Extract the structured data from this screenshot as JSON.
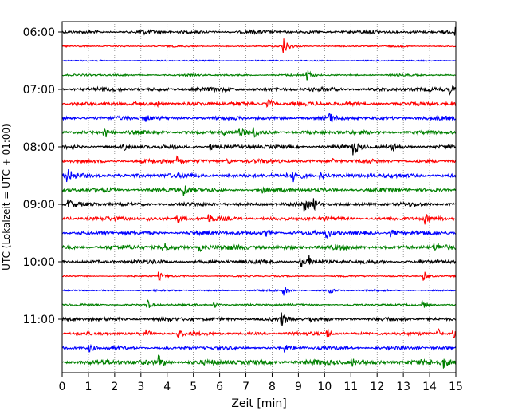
{
  "chart_data": {
    "type": "line",
    "title": "",
    "xlabel": "Zeit  [min]",
    "ylabel": "UTC (Lokalzeit = UTC + 01:00)",
    "xlim": [
      0,
      15
    ],
    "x_ticks": [
      "0",
      "1",
      "2",
      "3",
      "4",
      "5",
      "6",
      "7",
      "8",
      "9",
      "10",
      "11",
      "12",
      "13",
      "14",
      "15"
    ],
    "y_tick_labels": [
      "06:00",
      "07:00",
      "08:00",
      "09:00",
      "10:00",
      "11:00"
    ],
    "grid": "vertical-dotted",
    "trace_colors": [
      "#000000",
      "#ff0000",
      "#0000ff",
      "#008000"
    ],
    "traces": [
      {
        "time": "06:00",
        "color": "black",
        "amplitude": 0.25,
        "spikes": [
          [
            3.0,
            0.4
          ],
          [
            14.5,
            0.5
          ],
          [
            15.0,
            0.6
          ]
        ]
      },
      {
        "time": "06:15",
        "color": "red",
        "amplitude": 0.12,
        "spikes": [
          [
            8.45,
            1.4
          ]
        ]
      },
      {
        "time": "06:30",
        "color": "blue",
        "amplitude": 0.1,
        "spikes": []
      },
      {
        "time": "06:45",
        "color": "green",
        "amplitude": 0.15,
        "spikes": [
          [
            9.35,
            0.9
          ]
        ]
      },
      {
        "time": "07:00",
        "color": "black",
        "amplitude": 0.3,
        "spikes": [
          [
            14.8,
            0.7
          ]
        ]
      },
      {
        "time": "07:15",
        "color": "red",
        "amplitude": 0.3,
        "spikes": [
          [
            3.55,
            0.7
          ],
          [
            7.85,
            1.1
          ]
        ]
      },
      {
        "time": "07:30",
        "color": "blue",
        "amplitude": 0.3,
        "spikes": [
          [
            3.2,
            0.5
          ],
          [
            10.2,
            0.6
          ]
        ]
      },
      {
        "time": "07:45",
        "color": "green",
        "amplitude": 0.3,
        "spikes": [
          [
            1.6,
            1.1
          ],
          [
            6.1,
            0.7
          ],
          [
            6.75,
            0.6
          ],
          [
            7.3,
            0.7
          ]
        ]
      },
      {
        "time": "08:00",
        "color": "black",
        "amplitude": 0.3,
        "spikes": [
          [
            2.35,
            0.5
          ],
          [
            5.65,
            0.6
          ],
          [
            11.1,
            1.4
          ],
          [
            12.6,
            0.6
          ]
        ]
      },
      {
        "time": "08:15",
        "color": "red",
        "amplitude": 0.3,
        "spikes": [
          [
            4.4,
            0.8
          ],
          [
            6.3,
            0.5
          ],
          [
            10.3,
            0.5
          ]
        ]
      },
      {
        "time": "08:30",
        "color": "blue",
        "amplitude": 0.35,
        "spikes": [
          [
            0.2,
            1.0
          ],
          [
            8.85,
            0.9
          ],
          [
            9.85,
            0.6
          ]
        ]
      },
      {
        "time": "08:45",
        "color": "green",
        "amplitude": 0.3,
        "spikes": [
          [
            4.65,
            1.0
          ],
          [
            7.6,
            0.5
          ]
        ]
      },
      {
        "time": "09:00",
        "color": "black",
        "amplitude": 0.3,
        "spikes": [
          [
            0.25,
            0.9
          ],
          [
            9.25,
            1.1
          ],
          [
            9.6,
            0.7
          ]
        ]
      },
      {
        "time": "09:15",
        "color": "red",
        "amplitude": 0.3,
        "spikes": [
          [
            3.25,
            0.5
          ],
          [
            4.4,
            0.6
          ],
          [
            5.6,
            0.6
          ],
          [
            13.8,
            0.9
          ]
        ]
      },
      {
        "time": "09:30",
        "color": "blue",
        "amplitude": 0.3,
        "spikes": [
          [
            7.75,
            0.6
          ],
          [
            10.1,
            0.9
          ],
          [
            12.55,
            0.6
          ]
        ]
      },
      {
        "time": "09:45",
        "color": "green",
        "amplitude": 0.35,
        "spikes": [
          [
            3.85,
            1.0
          ],
          [
            5.25,
            0.6
          ],
          [
            14.2,
            0.6
          ]
        ]
      },
      {
        "time": "10:00",
        "color": "black",
        "amplitude": 0.3,
        "spikes": [
          [
            9.1,
            0.9
          ],
          [
            9.4,
            1.0
          ]
        ]
      },
      {
        "time": "10:15",
        "color": "red",
        "amplitude": 0.12,
        "spikes": [
          [
            3.7,
            0.7
          ],
          [
            13.8,
            0.9
          ]
        ]
      },
      {
        "time": "10:30",
        "color": "blue",
        "amplitude": 0.12,
        "spikes": [
          [
            8.45,
            0.8
          ],
          [
            10.2,
            0.5
          ]
        ]
      },
      {
        "time": "10:45",
        "color": "green",
        "amplitude": 0.15,
        "spikes": [
          [
            3.25,
            0.8
          ],
          [
            5.8,
            0.5
          ],
          [
            13.75,
            0.8
          ]
        ]
      },
      {
        "time": "11:00",
        "color": "black",
        "amplitude": 0.3,
        "spikes": [
          [
            8.35,
            1.2
          ],
          [
            9.35,
            0.6
          ]
        ]
      },
      {
        "time": "11:15",
        "color": "red",
        "amplitude": 0.25,
        "spikes": [
          [
            3.2,
            0.6
          ],
          [
            4.4,
            0.7
          ],
          [
            10.1,
            0.7
          ],
          [
            14.3,
            1.0
          ],
          [
            14.9,
            0.7
          ]
        ]
      },
      {
        "time": "11:30",
        "color": "blue",
        "amplitude": 0.25,
        "spikes": [
          [
            1.05,
            0.6
          ],
          [
            8.5,
            0.6
          ]
        ]
      },
      {
        "time": "11:45",
        "color": "green",
        "amplitude": 0.4,
        "spikes": [
          [
            3.7,
            1.0
          ],
          [
            11.05,
            0.6
          ],
          [
            14.55,
            0.9
          ]
        ]
      }
    ]
  }
}
